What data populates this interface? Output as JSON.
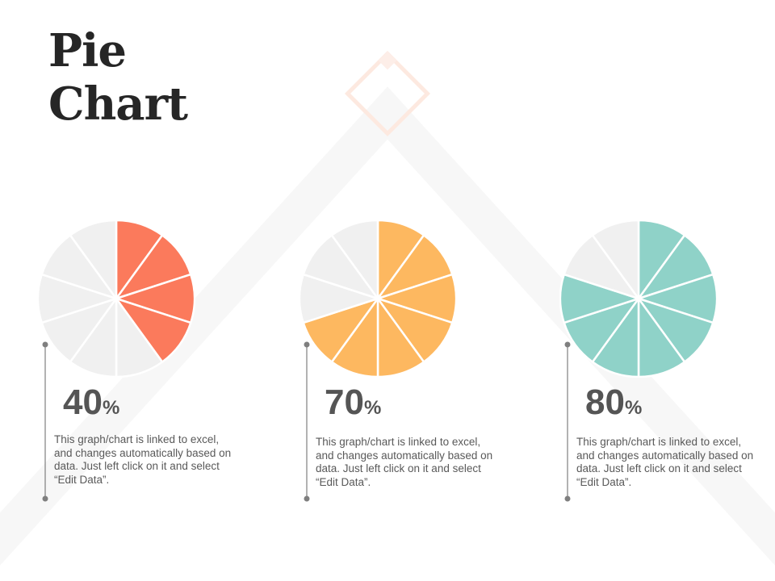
{
  "title": {
    "line1": "Pie",
    "line2": "Chart"
  },
  "colors": {
    "background": "#ffffff",
    "unfilled_slice": "#f0f0f0",
    "slice_separator": "#ffffff",
    "connector": "#7f7f7f",
    "decoration_lines": "#f7f7f7",
    "decoration_diamond": "#fde9e0"
  },
  "chart_data": [
    {
      "type": "pie",
      "segments": 10,
      "value": 40,
      "label_value": "40",
      "label_unit": "%",
      "color": "#fb7a5c",
      "description": "This graph/chart is linked to excel, and changes automatically based on data. Just left click on it and select “Edit Data”."
    },
    {
      "type": "pie",
      "segments": 10,
      "value": 70,
      "label_value": "70",
      "label_unit": "%",
      "color": "#fdb860",
      "description": "This graph/chart is linked to excel, and changes automatically based on data. Just left click on it and select “Edit Data”."
    },
    {
      "type": "pie",
      "segments": 10,
      "value": 80,
      "label_value": "80",
      "label_unit": "%",
      "color": "#8fd2c8",
      "description": "This graph/chart is linked to excel, and changes automatically based on data. Just left click on it and select “Edit Data”."
    }
  ]
}
